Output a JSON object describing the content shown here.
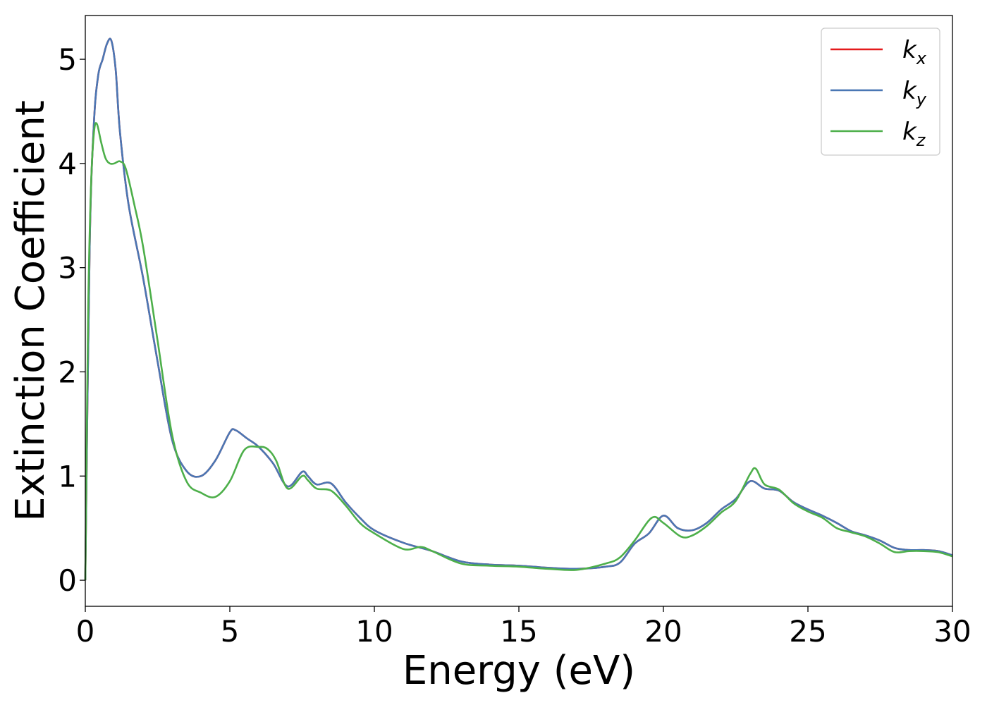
{
  "chart_data": {
    "type": "line",
    "title": "",
    "xlabel": "Energy (eV)",
    "ylabel": "Extinction Coefficient",
    "xlim": [
      0,
      30
    ],
    "ylim": [
      -0.25,
      5.42
    ],
    "xticks": [
      0,
      5,
      10,
      15,
      20,
      25,
      30
    ],
    "yticks": [
      0,
      1,
      2,
      3,
      4,
      5
    ],
    "grid": false,
    "legend_position": "top-right",
    "series": [
      {
        "name": "k_x",
        "legend_base": "k",
        "legend_sub": "x",
        "color": "#e41a1c",
        "x": [
          0,
          0.15,
          0.3,
          0.45,
          0.6,
          0.75,
          0.9,
          1.05,
          1.2,
          1.5,
          2.0,
          2.5,
          3.0,
          3.5,
          4.0,
          4.5,
          5.0,
          5.2,
          5.6,
          6.0,
          6.5,
          7.0,
          7.5,
          7.7,
          8.0,
          8.5,
          9.0,
          9.5,
          10.0,
          11.0,
          12.0,
          13.0,
          14.0,
          15.0,
          16.0,
          17.0,
          18.0,
          18.5,
          19.0,
          19.5,
          20.0,
          20.5,
          21.0,
          21.5,
          22.0,
          22.5,
          23.0,
          23.5,
          24.0,
          24.5,
          25.0,
          25.5,
          26.0,
          26.5,
          27.0,
          27.5,
          28.0,
          28.5,
          29.0,
          29.5,
          30.0
        ],
        "y": [
          0,
          3.2,
          4.4,
          4.85,
          5.0,
          5.15,
          5.18,
          4.9,
          4.3,
          3.6,
          2.9,
          2.1,
          1.35,
          1.05,
          1.0,
          1.15,
          1.42,
          1.44,
          1.36,
          1.28,
          1.12,
          0.9,
          1.04,
          1.0,
          0.92,
          0.93,
          0.75,
          0.6,
          0.48,
          0.36,
          0.28,
          0.18,
          0.15,
          0.14,
          0.12,
          0.11,
          0.13,
          0.17,
          0.35,
          0.45,
          0.62,
          0.5,
          0.48,
          0.55,
          0.68,
          0.78,
          0.95,
          0.88,
          0.86,
          0.75,
          0.68,
          0.62,
          0.55,
          0.47,
          0.43,
          0.38,
          0.31,
          0.29,
          0.29,
          0.28,
          0.24
        ]
      },
      {
        "name": "k_y",
        "legend_base": "k",
        "legend_sub": "y",
        "color": "#4a77b4",
        "x": [
          0,
          0.15,
          0.3,
          0.45,
          0.6,
          0.75,
          0.9,
          1.05,
          1.2,
          1.5,
          2.0,
          2.5,
          3.0,
          3.5,
          4.0,
          4.5,
          5.0,
          5.2,
          5.6,
          6.0,
          6.5,
          7.0,
          7.5,
          7.7,
          8.0,
          8.5,
          9.0,
          9.5,
          10.0,
          11.0,
          12.0,
          13.0,
          14.0,
          15.0,
          16.0,
          17.0,
          18.0,
          18.5,
          19.0,
          19.5,
          20.0,
          20.5,
          21.0,
          21.5,
          22.0,
          22.5,
          23.0,
          23.5,
          24.0,
          24.5,
          25.0,
          25.5,
          26.0,
          26.5,
          27.0,
          27.5,
          28.0,
          28.5,
          29.0,
          29.5,
          30.0
        ],
        "y": [
          0,
          3.2,
          4.4,
          4.85,
          5.0,
          5.15,
          5.18,
          4.9,
          4.3,
          3.6,
          2.9,
          2.1,
          1.35,
          1.05,
          1.0,
          1.15,
          1.42,
          1.44,
          1.36,
          1.28,
          1.12,
          0.9,
          1.04,
          1.0,
          0.92,
          0.93,
          0.75,
          0.6,
          0.48,
          0.36,
          0.28,
          0.18,
          0.15,
          0.14,
          0.12,
          0.11,
          0.13,
          0.17,
          0.35,
          0.45,
          0.62,
          0.5,
          0.48,
          0.55,
          0.68,
          0.78,
          0.95,
          0.88,
          0.86,
          0.75,
          0.68,
          0.62,
          0.55,
          0.47,
          0.43,
          0.38,
          0.31,
          0.29,
          0.29,
          0.28,
          0.24
        ]
      },
      {
        "name": "k_z",
        "legend_base": "k",
        "legend_sub": "z",
        "color": "#4daf4a",
        "x": [
          0,
          0.1,
          0.2,
          0.3,
          0.4,
          0.55,
          0.7,
          0.85,
          1.0,
          1.2,
          1.4,
          1.7,
          2.0,
          2.5,
          3.0,
          3.5,
          4.0,
          4.5,
          5.0,
          5.5,
          6.0,
          6.3,
          6.6,
          7.0,
          7.5,
          7.7,
          8.0,
          8.5,
          9.0,
          9.5,
          10.0,
          11.0,
          11.6,
          12.0,
          13.0,
          14.0,
          15.0,
          16.0,
          17.0,
          18.0,
          18.5,
          19.0,
          19.6,
          20.0,
          20.6,
          21.0,
          21.5,
          22.0,
          22.5,
          23.0,
          23.2,
          23.5,
          24.0,
          24.5,
          25.0,
          25.5,
          26.0,
          26.5,
          27.0,
          27.5,
          28.0,
          28.5,
          29.0,
          29.5,
          30.0
        ],
        "y": [
          0,
          2.6,
          3.8,
          4.3,
          4.38,
          4.2,
          4.05,
          4.0,
          4.0,
          4.02,
          3.95,
          3.6,
          3.2,
          2.3,
          1.4,
          0.95,
          0.84,
          0.8,
          0.95,
          1.25,
          1.28,
          1.26,
          1.15,
          0.88,
          1.0,
          0.96,
          0.88,
          0.86,
          0.72,
          0.55,
          0.45,
          0.3,
          0.32,
          0.28,
          0.16,
          0.14,
          0.13,
          0.11,
          0.1,
          0.16,
          0.22,
          0.38,
          0.6,
          0.55,
          0.42,
          0.43,
          0.52,
          0.65,
          0.76,
          1.02,
          1.07,
          0.92,
          0.87,
          0.74,
          0.66,
          0.6,
          0.5,
          0.46,
          0.42,
          0.35,
          0.27,
          0.28,
          0.28,
          0.27,
          0.23
        ]
      }
    ]
  }
}
